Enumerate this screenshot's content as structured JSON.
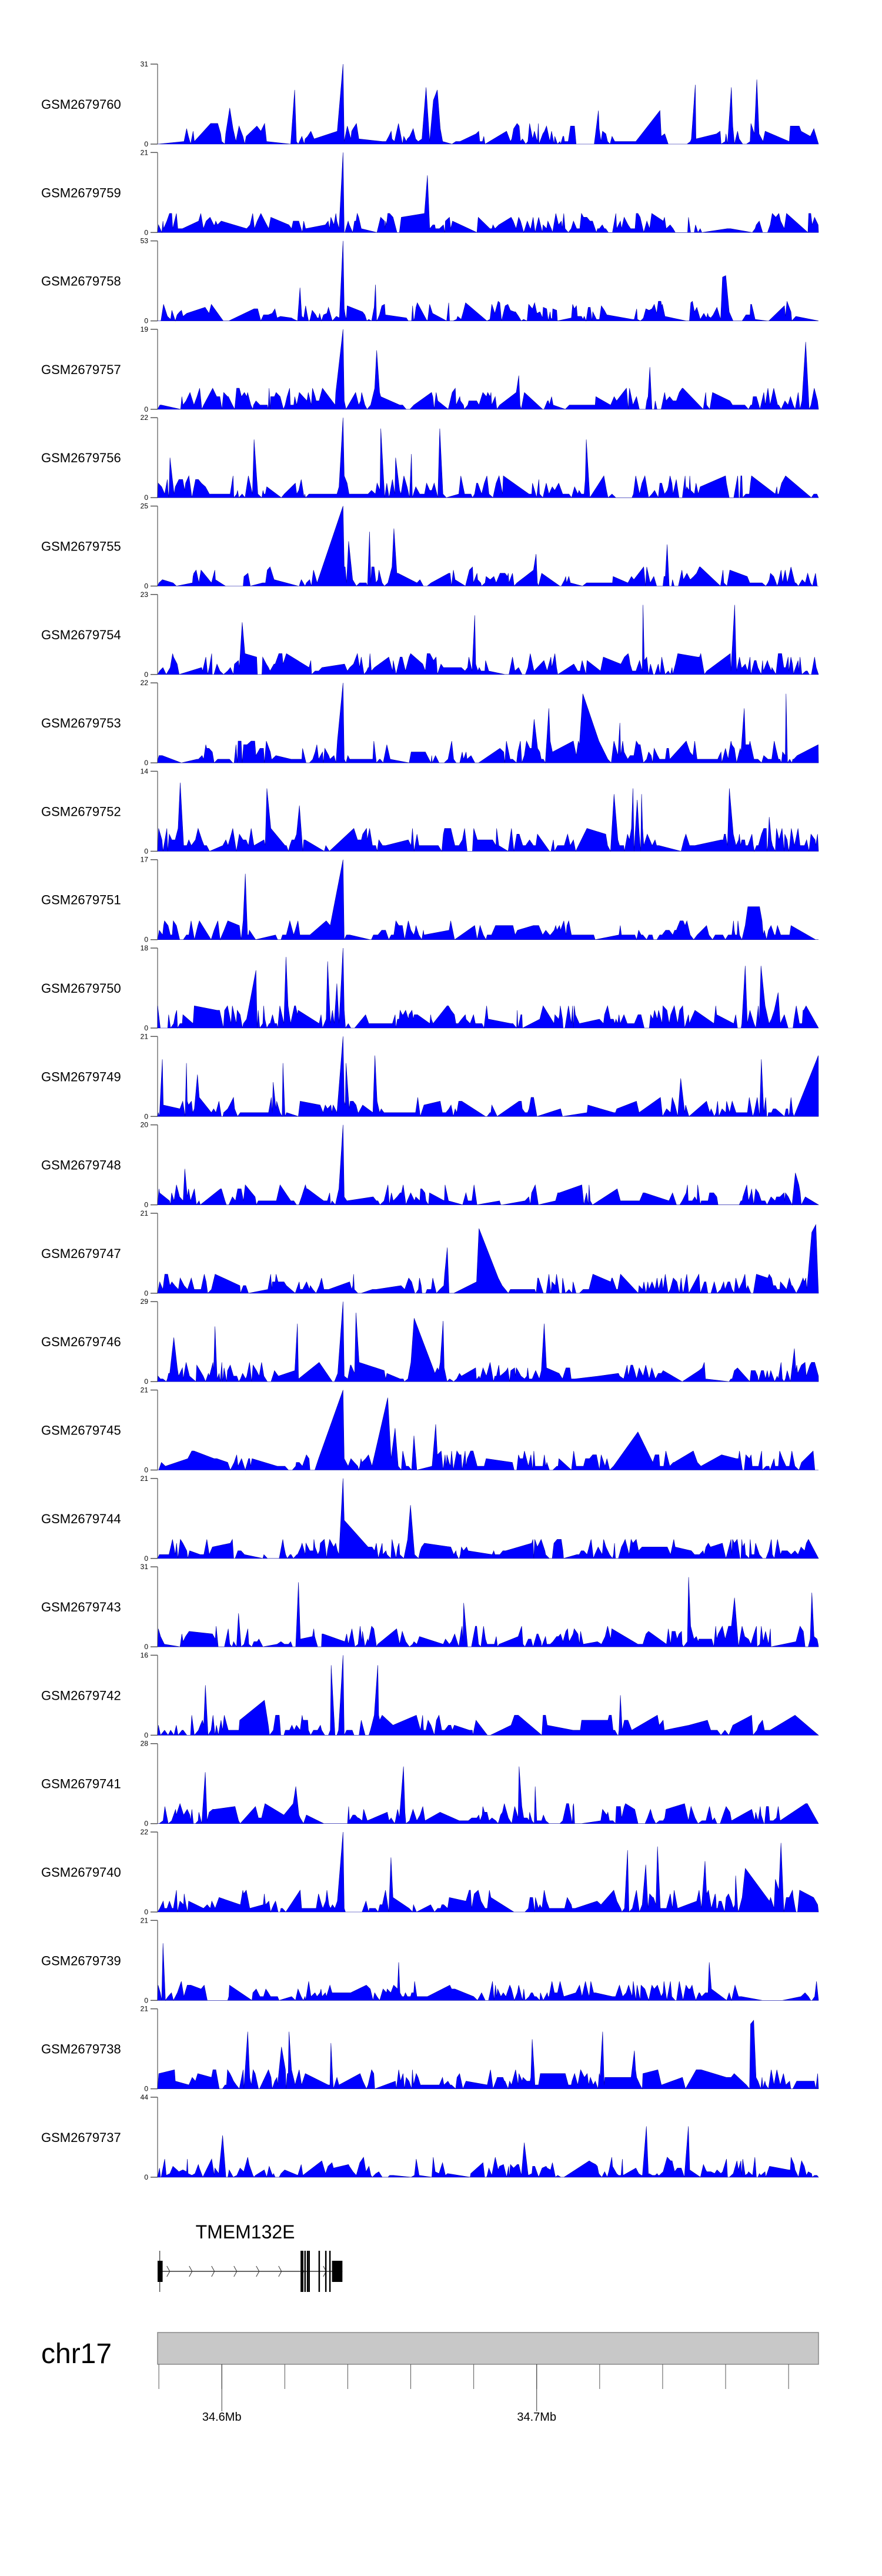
{
  "chart_data": {
    "type": "area",
    "title": "",
    "xlabel": "",
    "x_unit": "Mb",
    "xlim": [
      34.5796,
      34.7895
    ],
    "x_ticks": [
      34.58,
      34.6,
      34.62,
      34.64,
      34.66,
      34.68,
      34.7,
      34.72,
      34.74,
      34.76,
      34.78
    ],
    "x_tick_labels": [
      {
        "value": 34.6,
        "label": "34.6Mb"
      },
      {
        "value": 34.7,
        "label": "34.7Mb"
      }
    ],
    "series_color": "#0000ff",
    "series": [
      {
        "name": "GSM2679760",
        "ylim": [
          0,
          31
        ]
      },
      {
        "name": "GSM2679759",
        "ylim": [
          0,
          21
        ]
      },
      {
        "name": "GSM2679758",
        "ylim": [
          0,
          53
        ]
      },
      {
        "name": "GSM2679757",
        "ylim": [
          0,
          19
        ]
      },
      {
        "name": "GSM2679756",
        "ylim": [
          0,
          22
        ]
      },
      {
        "name": "GSM2679755",
        "ylim": [
          0,
          25
        ]
      },
      {
        "name": "GSM2679754",
        "ylim": [
          0,
          23
        ]
      },
      {
        "name": "GSM2679753",
        "ylim": [
          0,
          22
        ]
      },
      {
        "name": "GSM2679752",
        "ylim": [
          0,
          14
        ]
      },
      {
        "name": "GSM2679751",
        "ylim": [
          0,
          17
        ]
      },
      {
        "name": "GSM2679750",
        "ylim": [
          0,
          18
        ]
      },
      {
        "name": "GSM2679749",
        "ylim": [
          0,
          21
        ]
      },
      {
        "name": "GSM2679748",
        "ylim": [
          0,
          20
        ]
      },
      {
        "name": "GSM2679747",
        "ylim": [
          0,
          21
        ]
      },
      {
        "name": "GSM2679746",
        "ylim": [
          0,
          29
        ]
      },
      {
        "name": "GSM2679745",
        "ylim": [
          0,
          21
        ]
      },
      {
        "name": "GSM2679744",
        "ylim": [
          0,
          21
        ]
      },
      {
        "name": "GSM2679743",
        "ylim": [
          0,
          31
        ]
      },
      {
        "name": "GSM2679742",
        "ylim": [
          0,
          16
        ]
      },
      {
        "name": "GSM2679741",
        "ylim": [
          0,
          28
        ]
      },
      {
        "name": "GSM2679740",
        "ylim": [
          0,
          22
        ]
      },
      {
        "name": "GSM2679739",
        "ylim": [
          0,
          21
        ]
      },
      {
        "name": "GSM2679738",
        "ylim": [
          0,
          21
        ]
      },
      {
        "name": "GSM2679737",
        "ylim": [
          0,
          44
        ]
      }
    ],
    "gene": {
      "name": "TMEM132E",
      "start": 34.5803,
      "end": 34.6383,
      "strand": "+",
      "exons": [
        [
          34.5796,
          34.5812
        ],
        [
          34.625,
          34.6259
        ],
        [
          34.6262,
          34.6264
        ],
        [
          34.627,
          34.6272
        ],
        [
          34.6275,
          34.6277
        ],
        [
          34.6307,
          34.6309
        ],
        [
          34.6328,
          34.6331
        ],
        [
          34.6341,
          34.6343
        ],
        [
          34.635,
          34.6383
        ]
      ]
    },
    "chromosome": "chr17"
  }
}
